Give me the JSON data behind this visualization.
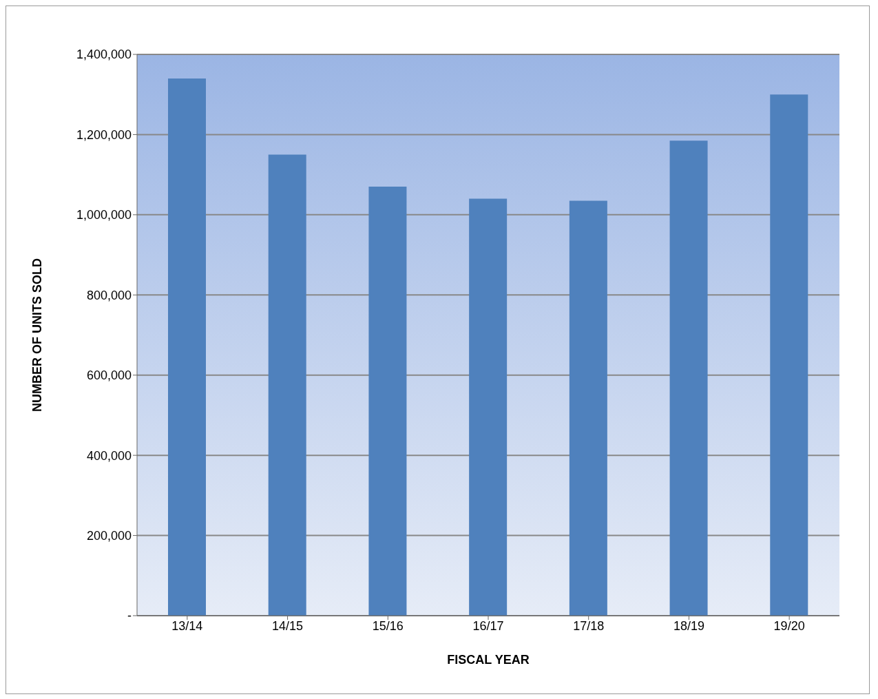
{
  "chart_data": {
    "type": "bar",
    "xlabel": "FISCAL YEAR",
    "ylabel": "NUMBER OF UNITS SOLD",
    "categories": [
      "13/14",
      "14/15",
      "15/16",
      "16/17",
      "17/18",
      "18/19",
      "19/20"
    ],
    "values": [
      1340000,
      1150000,
      1070000,
      1040000,
      1035000,
      1185000,
      1300000
    ],
    "color": "#4f81bd",
    "ylim": [
      0,
      1400000
    ],
    "yticks": [
      {
        "value": 0,
        "label": "-"
      },
      {
        "value": 200000,
        "label": "200,000"
      },
      {
        "value": 400000,
        "label": "400,000"
      },
      {
        "value": 600000,
        "label": "600,000"
      },
      {
        "value": 800000,
        "label": "800,000"
      },
      {
        "value": 1000000,
        "label": "1,000,000"
      },
      {
        "value": 1200000,
        "label": "1,200,000"
      },
      {
        "value": 1400000,
        "label": "1,400,000"
      }
    ],
    "grid": "y"
  }
}
